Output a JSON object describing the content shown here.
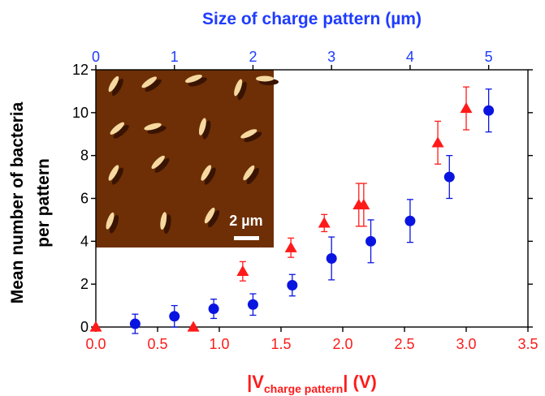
{
  "chart_data": {
    "type": "scatter",
    "top_axis": {
      "title": "Size of charge pattern (µm)",
      "range": [
        0,
        5.5
      ],
      "ticks": [
        "0",
        "1",
        "2",
        "3",
        "4",
        "5"
      ],
      "color": "#1f3cff"
    },
    "bottom_axis": {
      "title_main": "|V",
      "title_sub": "charge pattern",
      "title_end": "| (V)",
      "range": [
        0,
        3.5
      ],
      "ticks": [
        "0.0",
        "0.5",
        "1.0",
        "1.5",
        "2.0",
        "2.5",
        "3.0",
        "3.5"
      ],
      "color": "#ff1a1a"
    },
    "left_axis": {
      "title_line1": "Mean number of bacteria",
      "title_line2": "per pattern",
      "range": [
        0,
        12
      ],
      "ticks": [
        "0",
        "2",
        "4",
        "6",
        "8",
        "10",
        "12"
      ]
    },
    "series": [
      {
        "color": "#0a14e0",
        "marker": "circle",
        "axis": "top",
        "points": [
          {
            "x": 0.5,
            "y": 0.15,
            "err": 0.45
          },
          {
            "x": 1.0,
            "y": 0.5,
            "err": 0.5
          },
          {
            "x": 1.5,
            "y": 0.85,
            "err": 0.45
          },
          {
            "x": 2.0,
            "y": 1.05,
            "err": 0.5
          },
          {
            "x": 2.5,
            "y": 1.95,
            "err": 0.5
          },
          {
            "x": 3.0,
            "y": 3.2,
            "err": 1.0
          },
          {
            "x": 3.5,
            "y": 4.0,
            "err": 1.0
          },
          {
            "x": 4.0,
            "y": 4.95,
            "err": 1.0
          },
          {
            "x": 4.5,
            "y": 7.0,
            "err": 1.0
          },
          {
            "x": 5.0,
            "y": 10.1,
            "err": 1.0
          }
        ]
      },
      {
        "color": "#ff1a1a",
        "marker": "triangle",
        "axis": "bottom",
        "points": [
          {
            "x": 0.0,
            "y": 0.0,
            "err": 0
          },
          {
            "x": 0.79,
            "y": 0.0,
            "err": 0
          },
          {
            "x": 1.19,
            "y": 2.6,
            "err": 0.45
          },
          {
            "x": 1.58,
            "y": 3.7,
            "err": 0.45
          },
          {
            "x": 1.85,
            "y": 4.85,
            "err": 0.4
          },
          {
            "x": 2.13,
            "y": 5.7,
            "err": 1.0
          },
          {
            "x": 2.17,
            "y": 5.7,
            "err": 1.0
          },
          {
            "x": 2.77,
            "y": 8.6,
            "err": 1.0
          },
          {
            "x": 3.0,
            "y": 10.2,
            "err": 1.0
          }
        ]
      }
    ],
    "inset": {
      "scale_label": "2 µm"
    }
  },
  "colors": {
    "afm_background": "#6e2f06",
    "afm_bright": "#f6d9a0",
    "afm_shadow": "#3a1402"
  }
}
